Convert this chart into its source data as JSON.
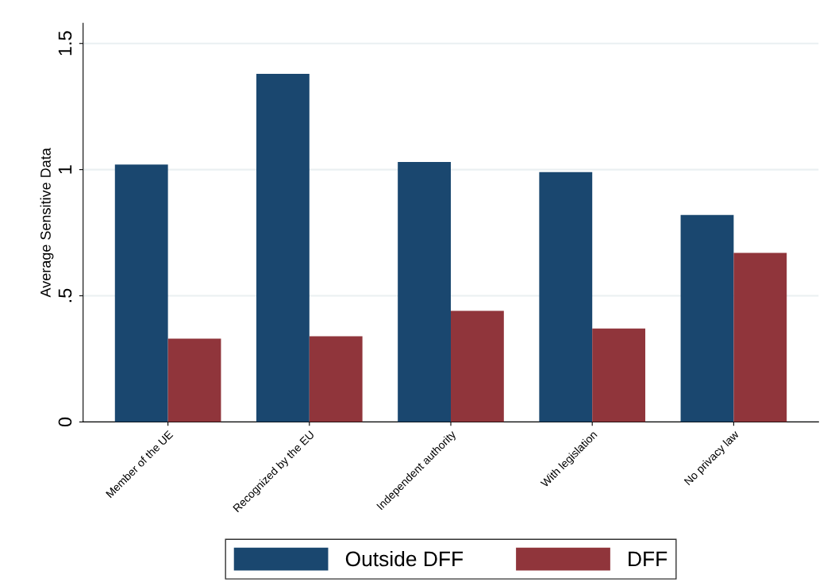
{
  "chart_data": {
    "type": "bar",
    "ylabel": "Average Sensitive Data",
    "categories": [
      "Member of the UE",
      "Recognized by the EU",
      "Independent authority",
      "With legislation",
      "No privacy law"
    ],
    "series": [
      {
        "name": "Outside DFF",
        "color": "#1a476f",
        "values": [
          1.02,
          1.38,
          1.03,
          0.99,
          0.82
        ]
      },
      {
        "name": "DFF",
        "color": "#90353b",
        "values": [
          0.33,
          0.34,
          0.44,
          0.37,
          0.67
        ]
      }
    ],
    "ylim": [
      0,
      1.58
    ],
    "yticks": [
      0,
      {
        "value": 0.5,
        "label": ".5"
      },
      1,
      1.5
    ],
    "grid": "y",
    "legend": "bottom"
  }
}
